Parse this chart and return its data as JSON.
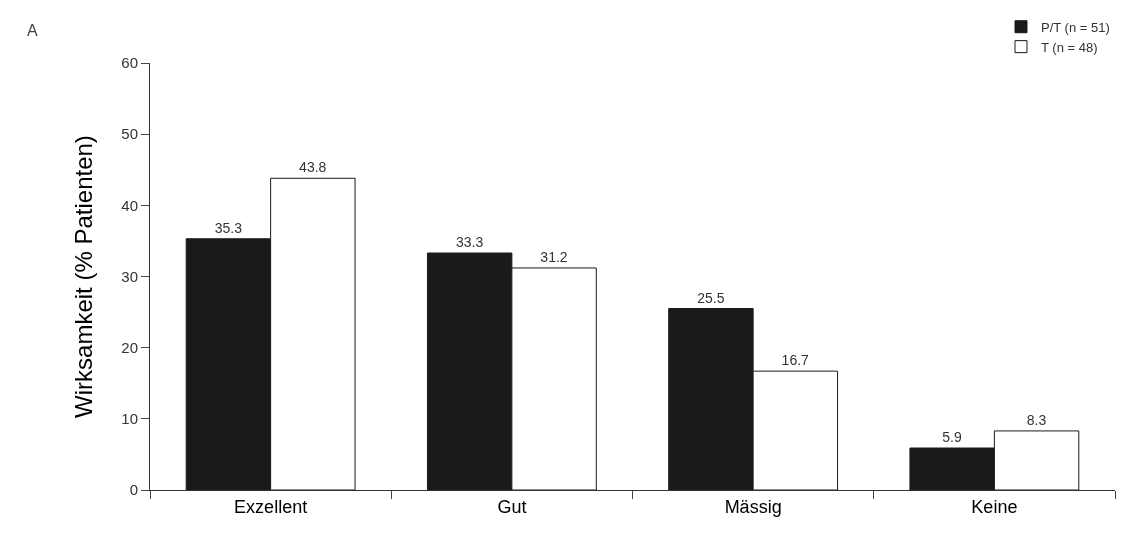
{
  "chart_data": {
    "type": "bar",
    "ylabel": "Wirksamkeit (% Patienten)",
    "categories": [
      "Exzellent",
      "Gut",
      "Mässig",
      "Keine"
    ],
    "series": [
      {
        "name": "P/T (n = 51)",
        "color": "#1a1a1a",
        "values": [
          35.3,
          33.3,
          25.5,
          5.9
        ]
      },
      {
        "name": "T (n = 48)",
        "color": "#ffffff",
        "values": [
          43.8,
          31.2,
          16.7,
          8.3
        ]
      }
    ],
    "ylim": [
      0,
      60
    ],
    "yticks": [
      0,
      10,
      20,
      30,
      40,
      50,
      60
    ],
    "grid": false,
    "legend": "top right",
    "data_labels": true,
    "annotations": [
      "A"
    ]
  }
}
